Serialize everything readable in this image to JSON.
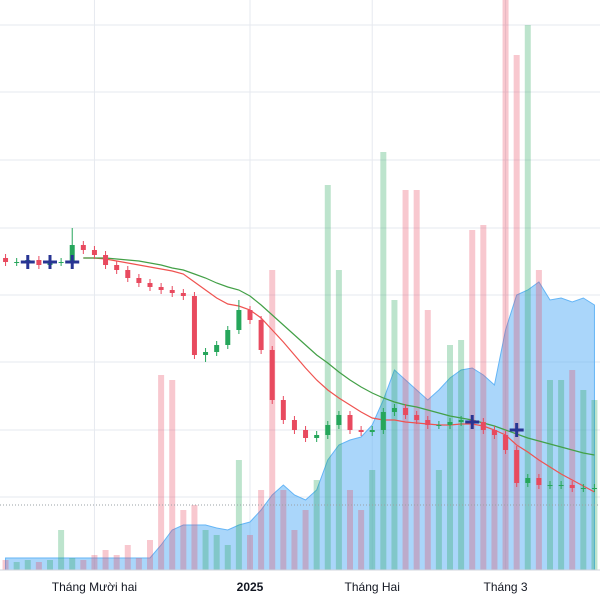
{
  "chart_data": {
    "type": "candlestick",
    "categories": [
      null,
      null,
      null,
      null,
      null,
      null,
      null,
      null,
      "Tháng Mười hai",
      null,
      null,
      null,
      null,
      null,
      null,
      null,
      null,
      null,
      null,
      null,
      null,
      null,
      "2025",
      null,
      null,
      null,
      null,
      null,
      null,
      null,
      null,
      null,
      null,
      "Tháng Hai",
      null,
      null,
      null,
      null,
      null,
      null,
      null,
      null,
      null,
      null,
      null,
      "Tháng 3",
      null,
      null,
      null,
      null,
      null,
      null,
      null,
      null
    ],
    "open": [
      342,
      338,
      338,
      340,
      335,
      338,
      338,
      355,
      350,
      345,
      335,
      330,
      322,
      317,
      313,
      310,
      307,
      304,
      245,
      248,
      255,
      270,
      290,
      280,
      250,
      200,
      180,
      170,
      162,
      165,
      175,
      185,
      170,
      168,
      170,
      188,
      192,
      185,
      180,
      175,
      175,
      178,
      180,
      178,
      170,
      165,
      150,
      117,
      122,
      115,
      115,
      115,
      112,
      112
    ],
    "high": [
      346,
      342,
      344,
      344,
      342,
      342,
      372,
      359,
      354,
      349,
      339,
      334,
      326,
      321,
      317,
      314,
      311,
      308,
      252,
      259,
      274,
      300,
      294,
      284,
      254,
      204,
      184,
      174,
      169,
      179,
      189,
      189,
      174,
      174,
      192,
      196,
      196,
      189,
      184,
      179,
      182,
      184,
      184,
      182,
      174,
      169,
      154,
      126,
      126,
      119,
      119,
      119,
      116,
      116
    ],
    "low": [
      334,
      334,
      334,
      331,
      331,
      334,
      334,
      346,
      341,
      331,
      326,
      318,
      313,
      309,
      306,
      303,
      300,
      241,
      238,
      244,
      251,
      266,
      276,
      246,
      196,
      176,
      166,
      158,
      158,
      161,
      171,
      166,
      164,
      164,
      166,
      184,
      181,
      176,
      171,
      171,
      171,
      174,
      174,
      166,
      161,
      146,
      113,
      113,
      111,
      111,
      111,
      108,
      108,
      108
    ],
    "close": [
      338,
      338,
      340,
      335,
      338,
      338,
      355,
      350,
      345,
      335,
      330,
      322,
      317,
      313,
      310,
      307,
      304,
      245,
      248,
      255,
      270,
      290,
      280,
      250,
      200,
      180,
      170,
      162,
      165,
      175,
      185,
      170,
      168,
      170,
      188,
      192,
      185,
      180,
      175,
      175,
      178,
      180,
      178,
      170,
      165,
      150,
      117,
      122,
      115,
      115,
      115,
      112,
      112,
      112
    ],
    "volume": [
      10,
      8,
      10,
      8,
      10,
      40,
      12,
      10,
      15,
      20,
      15,
      25,
      12,
      30,
      195,
      190,
      60,
      65,
      40,
      35,
      25,
      110,
      35,
      80,
      300,
      80,
      40,
      60,
      90,
      385,
      300,
      80,
      60,
      100,
      418,
      270,
      380,
      380,
      260,
      100,
      225,
      230,
      340,
      345,
      140,
      570,
      515,
      545,
      300,
      190,
      190,
      200,
      180,
      170
    ],
    "area": [
      12,
      12,
      12,
      12,
      12,
      12,
      12,
      12,
      12,
      12,
      12,
      12,
      12,
      12,
      25,
      40,
      45,
      45,
      45,
      42,
      40,
      45,
      48,
      60,
      75,
      85,
      75,
      70,
      80,
      110,
      125,
      130,
      133,
      145,
      170,
      200,
      190,
      180,
      170,
      180,
      192,
      200,
      202,
      195,
      185,
      240,
      275,
      280,
      288,
      270,
      272,
      268,
      272,
      265
    ],
    "series": [
      {
        "color": "#ef5350",
        "values": [
          null,
          null,
          null,
          null,
          null,
          null,
          null,
          342,
          342,
          341,
          339,
          337,
          335,
          333,
          331,
          329,
          326,
          318,
          310,
          302,
          296,
          294,
          290,
          282,
          270,
          258,
          245,
          232,
          220,
          210,
          202,
          195,
          188,
          182,
          180,
          180,
          178,
          177,
          176,
          175,
          175,
          176,
          176,
          174,
          170,
          165,
          155,
          148,
          140,
          133,
          126,
          120,
          114,
          108
        ]
      },
      {
        "color": "#43a047",
        "values": [
          null,
          null,
          null,
          null,
          null,
          null,
          null,
          342,
          342,
          342,
          341,
          340,
          339,
          337,
          335,
          332,
          330,
          326,
          322,
          317,
          313,
          310,
          304,
          295,
          285,
          275,
          265,
          255,
          245,
          237,
          228,
          220,
          213,
          207,
          202,
          198,
          195,
          193,
          190,
          187,
          184,
          182,
          180,
          177,
          174,
          170,
          166,
          162,
          159,
          156,
          153,
          150,
          147,
          145
        ]
      }
    ],
    "signals": {
      "indices": [
        2,
        4,
        6,
        42,
        46
      ],
      "values": [
        338,
        338,
        338,
        178,
        170
      ],
      "color": "#283593"
    },
    "up_color": "#26a65b",
    "down_color": "#e84a5f",
    "area_color": "#64b5f6",
    "ylim": [
      30,
      600
    ],
    "y2lim": [
      0,
      570
    ],
    "ygrid": [
      575,
      508,
      440,
      372,
      305,
      238,
      170,
      103
    ],
    "price_line": 95,
    "grid": true
  }
}
